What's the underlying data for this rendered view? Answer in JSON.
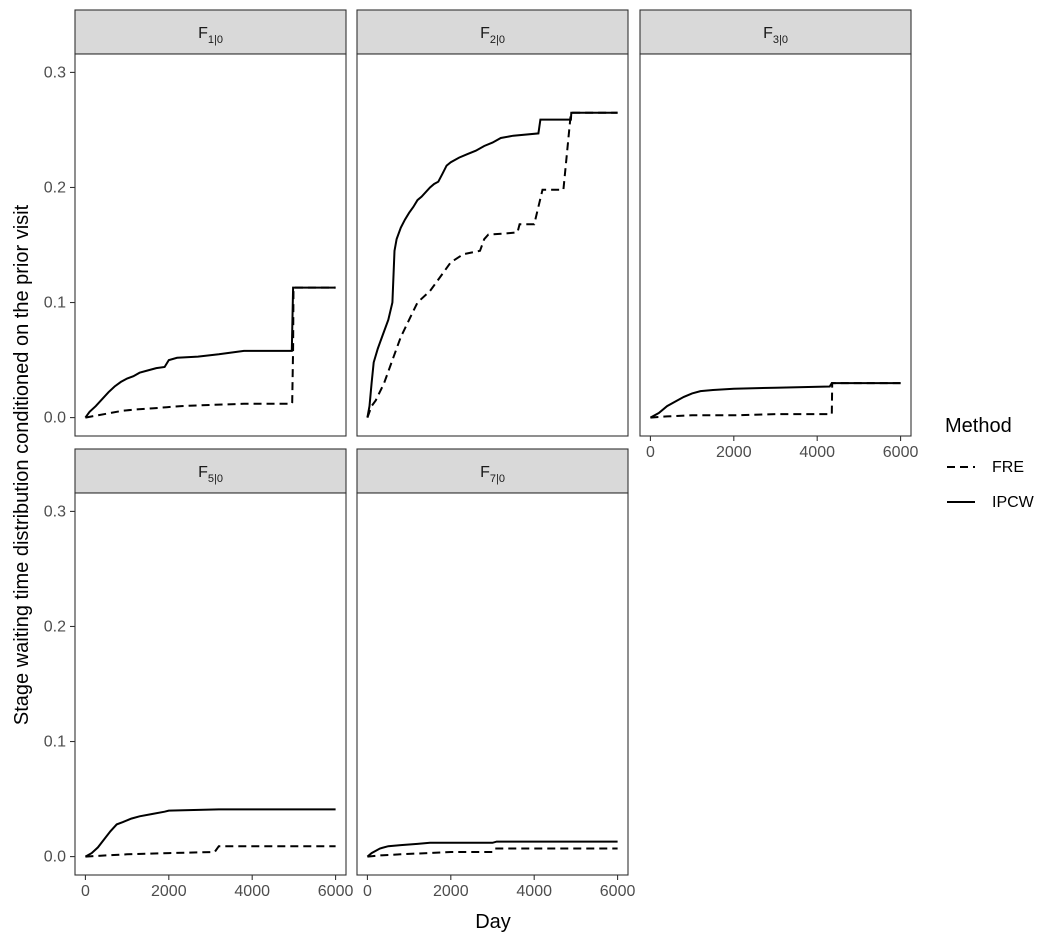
{
  "chart_data": {
    "type": "line",
    "xlabel": "Day",
    "ylabel": "Stage waiting time distribution conditioned on the prior visit",
    "xlim": [
      -250,
      6250
    ],
    "ylim": [
      -0.016,
      0.316
    ],
    "x_ticks": [
      0,
      2000,
      4000,
      6000
    ],
    "y_ticks": [
      0.0,
      0.1,
      0.2,
      0.3
    ],
    "x_tick_labels": [
      "0",
      "2000",
      "4000",
      "6000"
    ],
    "y_tick_labels": [
      "0.0",
      "0.1",
      "0.2",
      "0.3"
    ],
    "grid": false,
    "legend": {
      "title": "Method",
      "position": "right",
      "entries": [
        {
          "label": "FRE",
          "linetype": "dashed"
        },
        {
          "label": "IPCW",
          "linetype": "solid"
        }
      ]
    },
    "facets": [
      {
        "label_main": "F",
        "label_sub": "1|0",
        "series": [
          {
            "name": "FRE",
            "points": [
              [
                0,
                0
              ],
              [
                300,
                0.002
              ],
              [
                600,
                0.004
              ],
              [
                900,
                0.006
              ],
              [
                1200,
                0.007
              ],
              [
                1600,
                0.008
              ],
              [
                1950,
                0.009
              ],
              [
                2300,
                0.01
              ],
              [
                3000,
                0.011
              ],
              [
                3800,
                0.012
              ],
              [
                4950,
                0.012
              ],
              [
                4960,
                0.013
              ],
              [
                4980,
                0.06
              ],
              [
                4990,
                0.113
              ],
              [
                6000,
                0.113
              ]
            ]
          },
          {
            "name": "IPCW",
            "points": [
              [
                0,
                0
              ],
              [
                100,
                0.005
              ],
              [
                250,
                0.01
              ],
              [
                400,
                0.016
              ],
              [
                550,
                0.022
              ],
              [
                700,
                0.027
              ],
              [
                850,
                0.031
              ],
              [
                1000,
                0.034
              ],
              [
                1150,
                0.036
              ],
              [
                1300,
                0.039
              ],
              [
                1500,
                0.041
              ],
              [
                1700,
                0.043
              ],
              [
                1900,
                0.044
              ],
              [
                2000,
                0.05
              ],
              [
                2200,
                0.052
              ],
              [
                2700,
                0.053
              ],
              [
                3200,
                0.055
              ],
              [
                3800,
                0.058
              ],
              [
                4950,
                0.058
              ],
              [
                4980,
                0.113
              ],
              [
                6000,
                0.113
              ]
            ]
          }
        ]
      },
      {
        "label_main": "F",
        "label_sub": "2|0",
        "series": [
          {
            "name": "FRE",
            "points": [
              [
                0,
                0
              ],
              [
                100,
                0.01
              ],
              [
                200,
                0.015
              ],
              [
                400,
                0.03
              ],
              [
                600,
                0.05
              ],
              [
                800,
                0.07
              ],
              [
                1000,
                0.085
              ],
              [
                1200,
                0.1
              ],
              [
                1500,
                0.11
              ],
              [
                1800,
                0.125
              ],
              [
                2000,
                0.135
              ],
              [
                2300,
                0.142
              ],
              [
                2700,
                0.145
              ],
              [
                2800,
                0.155
              ],
              [
                2900,
                0.159
              ],
              [
                3300,
                0.16
              ],
              [
                3600,
                0.161
              ],
              [
                3650,
                0.168
              ],
              [
                4000,
                0.168
              ],
              [
                4200,
                0.198
              ],
              [
                4700,
                0.198
              ],
              [
                4880,
                0.265
              ],
              [
                6000,
                0.265
              ]
            ]
          },
          {
            "name": "IPCW",
            "points": [
              [
                0,
                0
              ],
              [
                50,
                0.01
              ],
              [
                100,
                0.03
              ],
              [
                150,
                0.048
              ],
              [
                250,
                0.06
              ],
              [
                350,
                0.07
              ],
              [
                500,
                0.085
              ],
              [
                600,
                0.1
              ],
              [
                650,
                0.145
              ],
              [
                700,
                0.155
              ],
              [
                800,
                0.165
              ],
              [
                900,
                0.172
              ],
              [
                1000,
                0.178
              ],
              [
                1100,
                0.183
              ],
              [
                1200,
                0.189
              ],
              [
                1300,
                0.192
              ],
              [
                1500,
                0.2
              ],
              [
                1600,
                0.203
              ],
              [
                1700,
                0.205
              ],
              [
                1800,
                0.212
              ],
              [
                1900,
                0.219
              ],
              [
                2000,
                0.222
              ],
              [
                2200,
                0.226
              ],
              [
                2400,
                0.229
              ],
              [
                2600,
                0.232
              ],
              [
                2800,
                0.236
              ],
              [
                3000,
                0.239
              ],
              [
                3200,
                0.243
              ],
              [
                3500,
                0.245
              ],
              [
                4100,
                0.247
              ],
              [
                4150,
                0.259
              ],
              [
                4880,
                0.259
              ],
              [
                4890,
                0.265
              ],
              [
                6000,
                0.265
              ]
            ]
          }
        ]
      },
      {
        "label_main": "F",
        "label_sub": "3|0",
        "series": [
          {
            "name": "FRE",
            "points": [
              [
                0,
                0
              ],
              [
                400,
                0.001
              ],
              [
                1000,
                0.002
              ],
              [
                2000,
                0.002
              ],
              [
                3000,
                0.003
              ],
              [
                4350,
                0.003
              ],
              [
                4360,
                0.03
              ],
              [
                6000,
                0.03
              ]
            ]
          },
          {
            "name": "IPCW",
            "points": [
              [
                0,
                0
              ],
              [
                200,
                0.004
              ],
              [
                400,
                0.01
              ],
              [
                600,
                0.014
              ],
              [
                800,
                0.018
              ],
              [
                1000,
                0.021
              ],
              [
                1200,
                0.023
              ],
              [
                1500,
                0.024
              ],
              [
                2000,
                0.025
              ],
              [
                3000,
                0.026
              ],
              [
                4300,
                0.027
              ],
              [
                4350,
                0.03
              ],
              [
                6000,
                0.03
              ]
            ]
          }
        ]
      },
      {
        "label_main": "F",
        "label_sub": "5|0",
        "series": [
          {
            "name": "FRE",
            "points": [
              [
                0,
                0
              ],
              [
                500,
                0.001
              ],
              [
                1000,
                0.002
              ],
              [
                2000,
                0.003
              ],
              [
                3100,
                0.004
              ],
              [
                3200,
                0.009
              ],
              [
                6000,
                0.009
              ]
            ]
          },
          {
            "name": "IPCW",
            "points": [
              [
                0,
                0
              ],
              [
                150,
                0.003
              ],
              [
                300,
                0.008
              ],
              [
                450,
                0.015
              ],
              [
                600,
                0.022
              ],
              [
                750,
                0.028
              ],
              [
                900,
                0.03
              ],
              [
                1100,
                0.033
              ],
              [
                1300,
                0.035
              ],
              [
                1600,
                0.037
              ],
              [
                1900,
                0.039
              ],
              [
                2000,
                0.04
              ],
              [
                3200,
                0.041
              ],
              [
                6000,
                0.041
              ]
            ]
          }
        ]
      },
      {
        "label_main": "F",
        "label_sub": "7|0",
        "series": [
          {
            "name": "FRE",
            "points": [
              [
                0,
                0
              ],
              [
                300,
                0.001
              ],
              [
                800,
                0.002
              ],
              [
                2000,
                0.004
              ],
              [
                3000,
                0.004
              ],
              [
                3050,
                0.007
              ],
              [
                6000,
                0.007
              ]
            ]
          },
          {
            "name": "IPCW",
            "points": [
              [
                0,
                0
              ],
              [
                100,
                0.003
              ],
              [
                300,
                0.007
              ],
              [
                500,
                0.009
              ],
              [
                800,
                0.01
              ],
              [
                1200,
                0.011
              ],
              [
                1500,
                0.012
              ],
              [
                3000,
                0.012
              ],
              [
                3100,
                0.013
              ],
              [
                6000,
                0.013
              ]
            ]
          }
        ]
      }
    ]
  }
}
